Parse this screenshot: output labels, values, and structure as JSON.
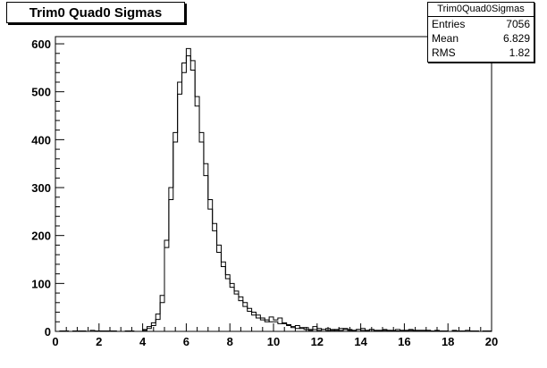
{
  "chart_data": {
    "type": "histogram",
    "title": "Trim0 Quad0 Sigmas",
    "xlim": [
      0,
      20
    ],
    "ylim": [
      0,
      615
    ],
    "xticks": [
      0,
      2,
      4,
      6,
      8,
      10,
      12,
      14,
      16,
      18,
      20
    ],
    "yticks": [
      0,
      100,
      200,
      300,
      400,
      500,
      600
    ],
    "bin_width": 0.2,
    "stats": {
      "name": "Trim0Quad0Sigmas",
      "entries_label": "Entries",
      "entries": "7056",
      "mean_label": "Mean",
      "mean": "6.829",
      "rms_label": "RMS",
      "rms": "1.82"
    },
    "series": [
      {
        "values": [
          0,
          1,
          0,
          0,
          1,
          1,
          0,
          0,
          2,
          1,
          0,
          1,
          1,
          0,
          0,
          0,
          1,
          0,
          0,
          0,
          2,
          6,
          12,
          25,
          60,
          175,
          275,
          395,
          495,
          540,
          575,
          565,
          490,
          415,
          350,
          275,
          225,
          180,
          145,
          118,
          100,
          84,
          72,
          60,
          48,
          40,
          34,
          28,
          24,
          20,
          20,
          16,
          18,
          12,
          8,
          6,
          8,
          4,
          2,
          4,
          2,
          4,
          2,
          4,
          2,
          2,
          6,
          4,
          2,
          4,
          2,
          2,
          4,
          2,
          2,
          2,
          2,
          1,
          1,
          2,
          2,
          2,
          2,
          2,
          2,
          2,
          1,
          1,
          0,
          1,
          0,
          1,
          1,
          1,
          0,
          1,
          1,
          0,
          1,
          1
        ]
      },
      {
        "values": [
          0,
          0,
          1,
          0,
          0,
          0,
          1,
          0,
          0,
          0,
          1,
          0,
          0,
          1,
          0,
          0,
          0,
          1,
          0,
          0,
          4,
          10,
          18,
          36,
          75,
          190,
          300,
          415,
          520,
          560,
          590,
          545,
          470,
          395,
          325,
          255,
          210,
          165,
          135,
          110,
          92,
          78,
          64,
          52,
          42,
          34,
          28,
          24,
          20,
          30,
          24,
          28,
          16,
          14,
          10,
          12,
          6,
          8,
          4,
          10,
          6,
          4,
          6,
          2,
          4,
          6,
          4,
          2,
          2,
          4,
          6,
          2,
          4,
          2,
          2,
          4,
          2,
          2,
          4,
          2,
          2,
          4,
          2,
          2,
          2,
          2,
          0,
          2,
          1,
          1,
          0,
          2,
          1,
          1,
          2,
          0,
          1,
          0,
          1,
          0
        ]
      }
    ]
  }
}
